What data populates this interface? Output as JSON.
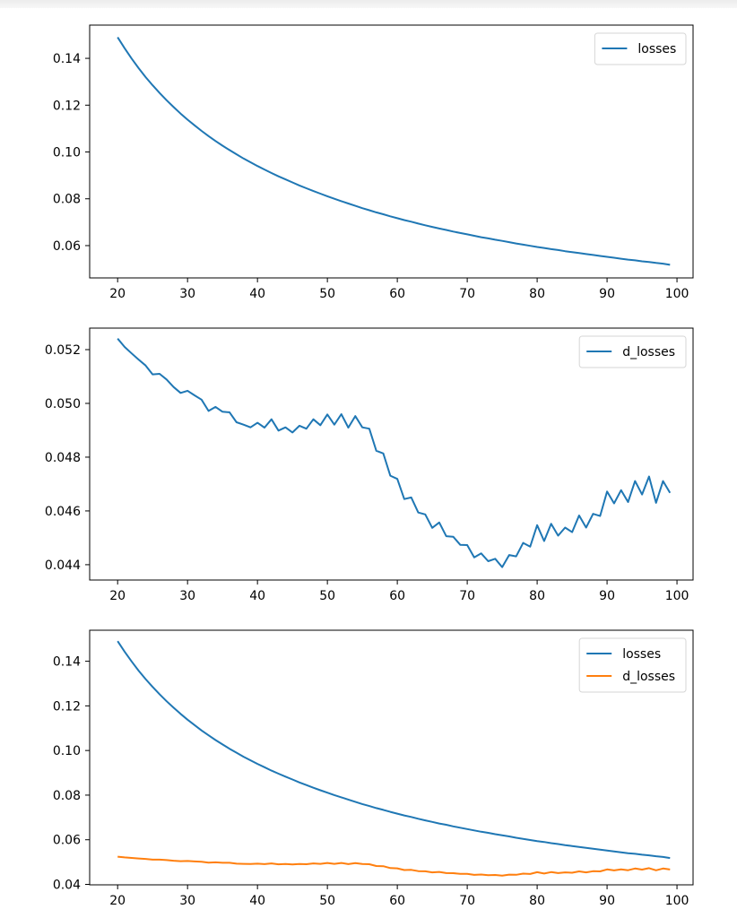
{
  "colors": {
    "losses": "#1f77b4",
    "d_losses": "#ff7f0e",
    "axis": "#000000"
  },
  "chart_data": [
    {
      "type": "line",
      "title": "",
      "xlabel": "",
      "ylabel": "",
      "xlim": [
        16.0,
        102.3
      ],
      "ylim": [
        0.0462,
        0.1542
      ],
      "xticks": [
        20,
        30,
        40,
        50,
        60,
        70,
        80,
        90,
        100
      ],
      "xtick_labels": [
        "20",
        "30",
        "40",
        "50",
        "60",
        "70",
        "80",
        "90",
        "100"
      ],
      "yticks": [
        0.06,
        0.08,
        0.1,
        0.12,
        0.14
      ],
      "ytick_labels": [
        "0.06",
        "0.08",
        "0.10",
        "0.12",
        "0.14"
      ],
      "grid": false,
      "legend": {
        "placement": "top-right",
        "entries": [
          "losses"
        ]
      },
      "series": [
        {
          "name": "losses",
          "color_key": "losses"
        }
      ]
    },
    {
      "type": "line",
      "title": "",
      "xlabel": "",
      "ylabel": "",
      "xlim": [
        16.0,
        102.3
      ],
      "ylim": [
        0.04343,
        0.0528
      ],
      "xticks": [
        20,
        30,
        40,
        50,
        60,
        70,
        80,
        90,
        100
      ],
      "xtick_labels": [
        "20",
        "30",
        "40",
        "50",
        "60",
        "70",
        "80",
        "90",
        "100"
      ],
      "yticks": [
        0.044,
        0.046,
        0.048,
        0.05,
        0.052
      ],
      "ytick_labels": [
        "0.044",
        "0.046",
        "0.048",
        "0.050",
        "0.052"
      ],
      "grid": false,
      "legend": {
        "placement": "top-right",
        "entries": [
          "d_losses"
        ]
      },
      "series": [
        {
          "name": "d_losses",
          "color_key": "losses"
        }
      ]
    },
    {
      "type": "line",
      "title": "",
      "xlabel": "",
      "ylabel": "",
      "xlim": [
        16.0,
        102.3
      ],
      "ylim": [
        0.0398,
        0.1539
      ],
      "xticks": [
        20,
        30,
        40,
        50,
        60,
        70,
        80,
        90,
        100
      ],
      "xtick_labels": [
        "20",
        "30",
        "40",
        "50",
        "60",
        "70",
        "80",
        "90",
        "100"
      ],
      "yticks": [
        0.04,
        0.06,
        0.08,
        0.1,
        0.12,
        0.14
      ],
      "ytick_labels": [
        "0.04",
        "0.06",
        "0.08",
        "0.10",
        "0.12",
        "0.14"
      ],
      "grid": false,
      "legend": {
        "placement": "top-right",
        "entries": [
          "losses",
          "d_losses"
        ]
      },
      "series": [
        {
          "name": "losses",
          "color_key": "losses"
        },
        {
          "name": "d_losses",
          "color_key": "d_losses"
        }
      ]
    }
  ],
  "series_values": {
    "x_start": 20,
    "losses": [
      0.149,
      0.1443,
      0.1399,
      0.1358,
      0.132,
      0.1285,
      0.1252,
      0.1221,
      0.1192,
      0.1164,
      0.1138,
      0.1114,
      0.109,
      0.1068,
      0.1047,
      0.1027,
      0.1008,
      0.099,
      0.0972,
      0.0956,
      0.094,
      0.0925,
      0.091,
      0.0896,
      0.0883,
      0.087,
      0.0857,
      0.0845,
      0.0833,
      0.0822,
      0.0811,
      0.08,
      0.079,
      0.078,
      0.077,
      0.076,
      0.0751,
      0.0742,
      0.0734,
      0.0725,
      0.0717,
      0.0709,
      0.0702,
      0.0694,
      0.0687,
      0.068,
      0.0673,
      0.0667,
      0.066,
      0.0654,
      0.0648,
      0.0642,
      0.0636,
      0.0631,
      0.0625,
      0.062,
      0.0615,
      0.0609,
      0.0604,
      0.0599,
      0.0594,
      0.059,
      0.0585,
      0.0581,
      0.0576,
      0.0572,
      0.0568,
      0.0564,
      0.056,
      0.0556,
      0.0552,
      0.0548,
      0.0544,
      0.054,
      0.0537,
      0.0533,
      0.053,
      0.0526,
      0.0523,
      0.0518
    ],
    "d_losses": [
      0.05241,
      0.0521,
      0.05186,
      0.05163,
      0.05141,
      0.05108,
      0.0511,
      0.05089,
      0.05061,
      0.05039,
      0.05047,
      0.0503,
      0.05014,
      0.04972,
      0.04987,
      0.04969,
      0.04967,
      0.0493,
      0.04921,
      0.04911,
      0.04928,
      0.0491,
      0.04941,
      0.04899,
      0.04911,
      0.04892,
      0.04917,
      0.04906,
      0.04941,
      0.04919,
      0.04959,
      0.04921,
      0.0496,
      0.0491,
      0.04953,
      0.04911,
      0.04906,
      0.04824,
      0.04814,
      0.04731,
      0.04719,
      0.04644,
      0.0465,
      0.04594,
      0.04587,
      0.04537,
      0.04557,
      0.04506,
      0.04504,
      0.04474,
      0.04473,
      0.04427,
      0.04442,
      0.04413,
      0.04422,
      0.04391,
      0.04436,
      0.04431,
      0.04481,
      0.04467,
      0.04547,
      0.04488,
      0.04552,
      0.04508,
      0.04538,
      0.04521,
      0.04583,
      0.04538,
      0.04589,
      0.04581,
      0.04672,
      0.04628,
      0.04677,
      0.04633,
      0.04711,
      0.04661,
      0.04728,
      0.0463,
      0.04711,
      0.04667
    ]
  }
}
